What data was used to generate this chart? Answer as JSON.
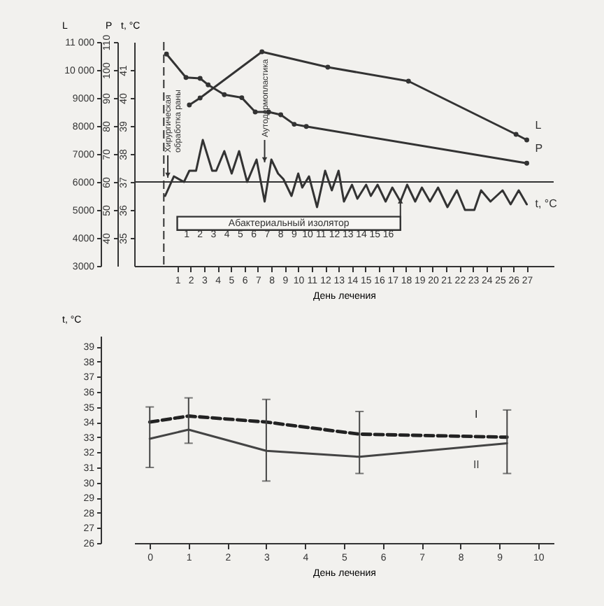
{
  "chart_data": [
    {
      "type": "line",
      "xlabel": "День лечения",
      "ylabel": "L",
      "y2label": "P",
      "y3label": "t, °C",
      "xlim": [
        -2.2,
        29
      ],
      "xticks": [
        1,
        2,
        3,
        4,
        5,
        6,
        7,
        8,
        9,
        10,
        11,
        12,
        13,
        14,
        15,
        16,
        17,
        18,
        19,
        20,
        21,
        22,
        23,
        24,
        25,
        26,
        27
      ],
      "x2lim": [
        -2.85,
        28.35
      ],
      "x2ticks": [
        1,
        2,
        3,
        4,
        5,
        6,
        7,
        8,
        9,
        10,
        11,
        12,
        13,
        14,
        15,
        16
      ],
      "ylim": [
        3000,
        11000
      ],
      "yticks": [
        3000,
        4000,
        5000,
        6000,
        7000,
        8000,
        9000,
        {
          "value": 10000,
          "label": "10 000"
        },
        {
          "value": 11000,
          "label": "11 000"
        }
      ],
      "y2lim": [
        30,
        110
      ],
      "y2ticks": [
        40,
        50,
        60,
        70,
        80,
        90,
        100,
        110
      ],
      "y3lim": [
        34,
        42
      ],
      "y3ticks": [
        35,
        36,
        37,
        38,
        39,
        40,
        41
      ],
      "series": [
        {
          "name": "L",
          "color": "#333333",
          "marker": "circle",
          "x": [
            1.9,
            2.7,
            7.3,
            12.2,
            18.2,
            26.2,
            27
          ],
          "values": [
            8750,
            9000,
            10650,
            10100,
            9600,
            7700,
            7500
          ]
        },
        {
          "name": "P",
          "color": "#333333",
          "marker": "circle",
          "axis": "y2",
          "x": [
            0.2,
            1.65,
            2.7,
            3.3,
            4.5,
            5.8,
            6.8,
            7.8,
            8.7,
            9.7,
            10.6,
            27
          ],
          "values": [
            105.7,
            97.3,
            97,
            94.7,
            91.2,
            90.1,
            85,
            85,
            84,
            80.6,
            79.8,
            66.7
          ]
        },
        {
          "name": "t, °C",
          "color": "#333333",
          "axis": "y3",
          "x": [
            0.1,
            0.75,
            1.5,
            1.9,
            2.4,
            2.9,
            3.6,
            3.9,
            4.5,
            5.05,
            5.6,
            6.2,
            6.9,
            7.5,
            8.0,
            8.5,
            8.9,
            9.5,
            10.0,
            10.3,
            10.8,
            11.4,
            12.0,
            12.5,
            13.0,
            13.4,
            14.0,
            14.4,
            15.05,
            15.4,
            15.9,
            16.5,
            17.0,
            17.6,
            18.1,
            18.7,
            19.2,
            19.8,
            20.4,
            21.1,
            21.8,
            22.4,
            23.1,
            23.6,
            24.3,
            25.2,
            25.8,
            26.4,
            27
          ],
          "values": [
            36.5,
            37.2,
            37.0,
            37.4,
            37.4,
            38.5,
            37.4,
            37.4,
            38.1,
            37.3,
            38.1,
            37.0,
            37.8,
            36.3,
            37.8,
            37.3,
            37.1,
            36.5,
            37.3,
            36.8,
            37.2,
            36.1,
            37.4,
            36.7,
            37.4,
            36.3,
            36.9,
            36.4,
            36.9,
            36.5,
            36.9,
            36.3,
            36.8,
            36.3,
            36.9,
            36.3,
            36.8,
            36.3,
            36.8,
            36.1,
            36.7,
            36.0,
            36.0,
            36.7,
            36.3,
            36.7,
            36.2,
            36.7,
            36.2
          ]
        }
      ],
      "ref_lines": [
        {
          "axis": "x",
          "value": 0,
          "line_style": "dashed"
        },
        {
          "axis": "y3",
          "value": 37
        }
      ],
      "bands": [
        {
          "axis": "x",
          "from": 1,
          "to": 17.6,
          "label": "Абактериальный изолятор"
        }
      ],
      "annotations": [
        {
          "text": "Хирургическая обработка раны",
          "x": 0.3,
          "y": 6150
        },
        {
          "text": "Аутодермопластика",
          "x": 7.5,
          "y": 6700
        }
      ]
    },
    {
      "type": "line",
      "xlabel": "День лечения",
      "ylabel": "t, °C",
      "xlim": [
        -0.4,
        10.4
      ],
      "xticks": [
        0,
        1,
        2,
        3,
        4,
        5,
        6,
        7,
        8,
        9,
        10
      ],
      "ylim": [
        26,
        39.7
      ],
      "yticks": [
        26,
        27,
        28,
        29,
        30,
        31,
        32,
        33,
        34,
        35,
        36,
        37,
        38,
        39
      ],
      "series": [
        {
          "name": "I",
          "color": "#222222",
          "line_style": "dashed",
          "x": [
            0,
            1,
            3,
            5.4,
            9.2
          ],
          "values": [
            34.0,
            34.4,
            34.0,
            33.2,
            33.0
          ],
          "errors": [
            [
              31.0,
              35.0
            ],
            [
              32.6,
              35.6
            ],
            [
              30.1,
              35.5
            ],
            [
              30.6,
              34.7
            ],
            [
              30.6,
              34.8
            ]
          ]
        },
        {
          "name": "II",
          "color": "#444444",
          "x": [
            0,
            1,
            3,
            5.4,
            9.2
          ],
          "values": [
            32.9,
            33.5,
            32.1,
            31.7,
            32.6
          ]
        }
      ]
    }
  ]
}
